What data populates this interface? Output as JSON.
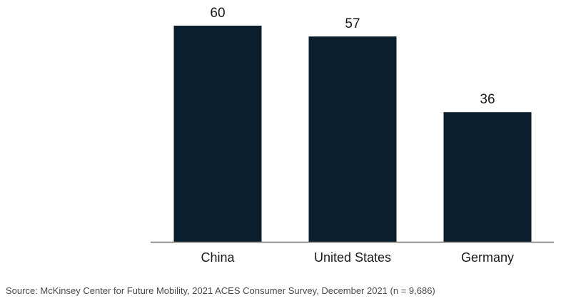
{
  "chart_data": {
    "type": "bar",
    "categories": [
      "China",
      "United States",
      "Germany"
    ],
    "values": [
      60,
      57,
      36
    ],
    "data_labels": [
      "60",
      "57",
      "36"
    ],
    "title": "",
    "xlabel": "",
    "ylabel": "",
    "ylim": [
      0,
      60
    ],
    "grid": false,
    "legend": "none",
    "bar_color": "#0b1e2d",
    "axis_color": "#6e6e6e"
  },
  "source": {
    "text": "Source: McKinsey Center for Future Mobility, 2021 ACES Consumer Survey, December 2021 (n = 9,686)"
  }
}
